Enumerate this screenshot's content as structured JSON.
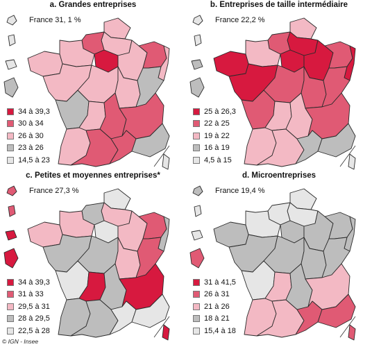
{
  "panels": [
    {
      "title": "a. Grandes entreprises",
      "national": "France 31, 1 %",
      "legend": [
        {
          "label": "34 à 39,3",
          "color": "#d7193f"
        },
        {
          "label": "30 à 34",
          "color": "#e05a74"
        },
        {
          "label": "26 à 30",
          "color": "#f3b9c4"
        },
        {
          "label": "23 à 26",
          "color": "#bdbdbd"
        },
        {
          "label": "14,5 à 23",
          "color": "#e6e6e6"
        }
      ]
    },
    {
      "title": "b. Entreprises de taille intermédiaire",
      "national": "France 22,2 %",
      "legend": [
        {
          "label": "25 à 26,3",
          "color": "#d7193f"
        },
        {
          "label": "22 à 25",
          "color": "#e05a74"
        },
        {
          "label": "19 à 22",
          "color": "#f3b9c4"
        },
        {
          "label": "16 à 19",
          "color": "#bdbdbd"
        },
        {
          "label": "4,5 à 15",
          "color": "#e6e6e6"
        }
      ]
    },
    {
      "title": "c. Petites et moyennes entreprises*",
      "national": "France 27,3 %",
      "legend": [
        {
          "label": "34 à 39,3",
          "color": "#d7193f"
        },
        {
          "label": "31 à 33",
          "color": "#e05a74"
        },
        {
          "label": "29,5 à 31",
          "color": "#f3b9c4"
        },
        {
          "label": "28 à 29,5",
          "color": "#bdbdbd"
        },
        {
          "label": "22,5 à 28",
          "color": "#e6e6e6"
        }
      ]
    },
    {
      "title": "d. Microentreprises",
      "national": "France 19,4 %",
      "legend": [
        {
          "label": "31 à 41,5",
          "color": "#d7193f"
        },
        {
          "label": "26 à 31",
          "color": "#e05a74"
        },
        {
          "label": "21 à 26",
          "color": "#f3b9c4"
        },
        {
          "label": "18 à 21",
          "color": "#bdbdbd"
        },
        {
          "label": "15,4 à 18",
          "color": "#e6e6e6"
        }
      ]
    }
  ],
  "regions": [
    {
      "name": "nord-pas-de-calais",
      "class": [
        2,
        2,
        4,
        4
      ]
    },
    {
      "name": "picardie",
      "class": [
        2,
        0,
        2,
        4
      ]
    },
    {
      "name": "haute-normandie",
      "class": [
        1,
        1,
        3,
        4
      ]
    },
    {
      "name": "basse-normandie",
      "class": [
        2,
        2,
        2,
        4
      ]
    },
    {
      "name": "ile-de-france",
      "class": [
        0,
        0,
        4,
        3
      ]
    },
    {
      "name": "champagne-ardenne",
      "class": [
        2,
        0,
        2,
        3
      ]
    },
    {
      "name": "lorraine",
      "class": [
        1,
        1,
        1,
        3
      ]
    },
    {
      "name": "alsace",
      "class": [
        2,
        0,
        3,
        3
      ]
    },
    {
      "name": "bretagne",
      "class": [
        2,
        0,
        2,
        3
      ]
    },
    {
      "name": "pays-de-la-loire",
      "class": [
        2,
        0,
        3,
        3
      ]
    },
    {
      "name": "centre",
      "class": [
        2,
        1,
        3,
        3
      ]
    },
    {
      "name": "bourgogne",
      "class": [
        2,
        1,
        2,
        3
      ]
    },
    {
      "name": "franche-comte",
      "class": [
        3,
        1,
        1,
        3
      ]
    },
    {
      "name": "poitou-charentes",
      "class": [
        3,
        1,
        4,
        4
      ]
    },
    {
      "name": "limousin",
      "class": [
        2,
        2,
        0,
        2
      ]
    },
    {
      "name": "auvergne",
      "class": [
        1,
        2,
        3,
        3
      ]
    },
    {
      "name": "rhone-alpes",
      "class": [
        1,
        1,
        0,
        2
      ]
    },
    {
      "name": "aquitaine",
      "class": [
        2,
        2,
        3,
        2
      ]
    },
    {
      "name": "midi-pyrenees",
      "class": [
        1,
        2,
        3,
        2
      ]
    },
    {
      "name": "languedoc-roussillon",
      "class": [
        1,
        3,
        4,
        1
      ]
    },
    {
      "name": "provence-alpes-cote-d-azur",
      "class": [
        3,
        3,
        4,
        1
      ]
    },
    {
      "name": "corse",
      "class": [
        4,
        4,
        0,
        1
      ]
    },
    {
      "name": "guadeloupe",
      "class": [
        4,
        4,
        1,
        3
      ]
    },
    {
      "name": "martinique",
      "class": [
        4,
        4,
        1,
        4
      ]
    },
    {
      "name": "guyane",
      "class": [
        3,
        3,
        0,
        1
      ]
    },
    {
      "name": "la-reunion",
      "class": [
        4,
        3,
        0,
        4
      ]
    }
  ],
  "source": "© IGN - Insee"
}
